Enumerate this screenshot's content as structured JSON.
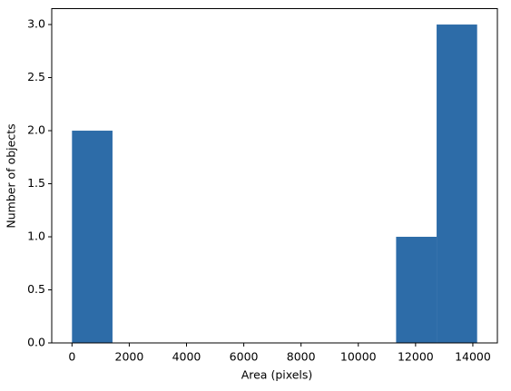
{
  "chart_data": {
    "type": "histogram",
    "bins": [
      0,
      1415,
      2830,
      4245,
      5660,
      7075,
      8490,
      9905,
      11320,
      12735,
      14150
    ],
    "values": [
      2,
      0,
      0,
      0,
      0,
      0,
      0,
      0,
      1,
      3
    ],
    "color": "#2d6ca8",
    "xlabel": "Area (pixels)",
    "ylabel": "Number of objects",
    "xlim": [
      -707.5,
      14857.5
    ],
    "ylim": [
      0,
      3.15
    ],
    "xticks": [
      0,
      2000,
      4000,
      6000,
      8000,
      10000,
      12000,
      14000
    ],
    "yticks": [
      {
        "value": 0,
        "label": "0.0"
      },
      {
        "value": 0.5,
        "label": "0.5"
      },
      {
        "value": 1,
        "label": "1.0"
      },
      {
        "value": 1.5,
        "label": "1.5"
      },
      {
        "value": 2,
        "label": "2.0"
      },
      {
        "value": 2.5,
        "label": "2.5"
      },
      {
        "value": 3,
        "label": "3.0"
      }
    ],
    "grid": false
  }
}
